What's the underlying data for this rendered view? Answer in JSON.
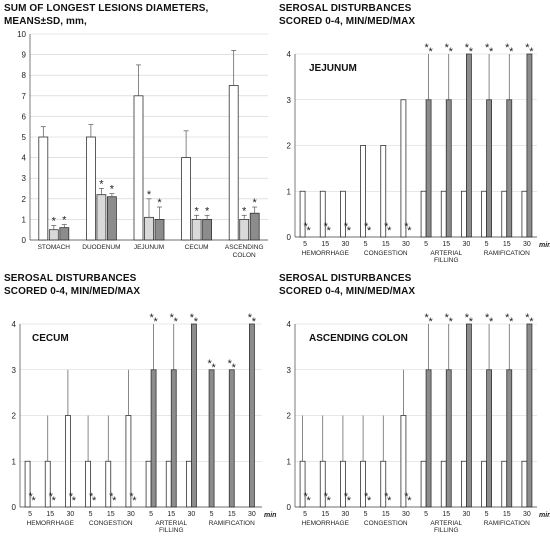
{
  "chart_data": [
    {
      "type": "bar",
      "title_lines": [
        "SUM OF LONGEST LESIONS DIAMETERS,",
        "MEANS±SD, mm,"
      ],
      "inner_title": "",
      "ylim": [
        0,
        10
      ],
      "yticks": [
        "0",
        "1",
        "2",
        "3",
        "4",
        "5",
        "6",
        "7",
        "8",
        "9",
        "10"
      ],
      "grid": true,
      "error_style": "sd",
      "categories": [
        {
          "label_lines": [
            "STOMACH"
          ],
          "bars": [
            {
              "value": 5.0,
              "err": 0.5,
              "star": false,
              "style": "white"
            },
            {
              "value": 0.5,
              "err": 0.2,
              "star": true,
              "style": "light"
            },
            {
              "value": 0.6,
              "err": 0.15,
              "star": true,
              "style": "gray"
            }
          ]
        },
        {
          "label_lines": [
            "DUODENUM"
          ],
          "bars": [
            {
              "value": 5.0,
              "err": 0.6,
              "star": false,
              "style": "white"
            },
            {
              "value": 2.2,
              "err": 0.3,
              "star": true,
              "style": "light"
            },
            {
              "value": 2.1,
              "err": 0.15,
              "star": true,
              "style": "gray"
            }
          ]
        },
        {
          "label_lines": [
            "JEJUNUM"
          ],
          "bars": [
            {
              "value": 7.0,
              "err": 1.5,
              "star": false,
              "style": "white"
            },
            {
              "value": 1.1,
              "err": 0.9,
              "star": true,
              "style": "light"
            },
            {
              "value": 1.0,
              "err": 0.6,
              "star": true,
              "style": "gray"
            }
          ]
        },
        {
          "label_lines": [
            "CECUM"
          ],
          "bars": [
            {
              "value": 4.0,
              "err": 1.3,
              "star": false,
              "style": "white"
            },
            {
              "value": 1.0,
              "err": 0.2,
              "star": true,
              "style": "light"
            },
            {
              "value": 1.0,
              "err": 0.2,
              "star": true,
              "style": "gray"
            }
          ]
        },
        {
          "label_lines": [
            "ASCENDING",
            "COLON"
          ],
          "bars": [
            {
              "value": 7.5,
              "err": 1.7,
              "star": false,
              "style": "white"
            },
            {
              "value": 1.0,
              "err": 0.2,
              "star": true,
              "style": "light"
            },
            {
              "value": 1.3,
              "err": 0.3,
              "star": true,
              "style": "gray"
            }
          ]
        }
      ]
    },
    {
      "type": "bar",
      "title_lines": [
        "SEROSAL DISTURBANCES",
        "SCORED 0-4, MIN/MED/MAX"
      ],
      "inner_title": "JEJUNUM",
      "ylim": [
        0,
        4
      ],
      "yticks": [
        "0",
        "1",
        "2",
        "3",
        "4"
      ],
      "grid": true,
      "error_style": "range",
      "unit_label": "min",
      "time_labels": [
        "5",
        "15",
        "30"
      ],
      "groups": [
        {
          "label_lines": [
            "HEMORRHAGE"
          ],
          "points": [
            {
              "time": "5",
              "bars": [
                {
                  "value": 1,
                  "max": 1,
                  "style": "white"
                },
                {
                  "value": 0,
                  "max": 0,
                  "style": "light",
                  "star": true
                }
              ]
            },
            {
              "time": "15",
              "bars": [
                {
                  "value": 1,
                  "max": 1,
                  "style": "white"
                },
                {
                  "value": 0,
                  "max": 0,
                  "style": "light",
                  "star": true
                }
              ]
            },
            {
              "time": "30",
              "bars": [
                {
                  "value": 1,
                  "max": 1,
                  "style": "white"
                },
                {
                  "value": 0,
                  "max": 0,
                  "style": "light",
                  "star": true
                }
              ]
            }
          ]
        },
        {
          "label_lines": [
            "CONGESTION"
          ],
          "points": [
            {
              "time": "5",
              "bars": [
                {
                  "value": 2,
                  "max": 2,
                  "style": "white"
                },
                {
                  "value": 0,
                  "max": 0,
                  "style": "light",
                  "star": true
                }
              ]
            },
            {
              "time": "15",
              "bars": [
                {
                  "value": 2,
                  "max": 2,
                  "style": "white"
                },
                {
                  "value": 0,
                  "max": 0,
                  "style": "light",
                  "star": true
                }
              ]
            },
            {
              "time": "30",
              "bars": [
                {
                  "value": 3,
                  "max": 3,
                  "style": "white"
                },
                {
                  "value": 0,
                  "max": 0,
                  "style": "light",
                  "star": true
                }
              ]
            }
          ]
        },
        {
          "label_lines": [
            "ARTERIAL",
            "FILLING"
          ],
          "points": [
            {
              "time": "5",
              "bars": [
                {
                  "value": 1,
                  "max": 1,
                  "style": "white"
                },
                {
                  "value": 3,
                  "max": 4,
                  "style": "gray",
                  "star": true
                }
              ]
            },
            {
              "time": "15",
              "bars": [
                {
                  "value": 1,
                  "max": 1,
                  "style": "white"
                },
                {
                  "value": 3,
                  "max": 4,
                  "style": "gray",
                  "star": true
                }
              ]
            },
            {
              "time": "30",
              "bars": [
                {
                  "value": 1,
                  "max": 1,
                  "style": "white"
                },
                {
                  "value": 4,
                  "max": 4,
                  "style": "gray",
                  "star": true
                }
              ]
            }
          ]
        },
        {
          "label_lines": [
            "RAMIFICATION"
          ],
          "points": [
            {
              "time": "5",
              "bars": [
                {
                  "value": 1,
                  "max": 1,
                  "style": "white"
                },
                {
                  "value": 3,
                  "max": 4,
                  "style": "gray",
                  "star": true
                }
              ]
            },
            {
              "time": "15",
              "bars": [
                {
                  "value": 1,
                  "max": 1,
                  "style": "white"
                },
                {
                  "value": 3,
                  "max": 4,
                  "style": "gray",
                  "star": true
                }
              ]
            },
            {
              "time": "30",
              "bars": [
                {
                  "value": 1,
                  "max": 1,
                  "style": "white"
                },
                {
                  "value": 4,
                  "max": 4,
                  "style": "gray",
                  "star": true
                }
              ]
            }
          ]
        }
      ]
    },
    {
      "type": "bar",
      "title_lines": [
        "SEROSAL DISTURBANCES",
        "SCORED 0-4, MIN/MED/MAX"
      ],
      "inner_title": "CECUM",
      "ylim": [
        0,
        4
      ],
      "yticks": [
        "0",
        "1",
        "2",
        "3",
        "4"
      ],
      "grid": true,
      "error_style": "range",
      "unit_label": "min",
      "time_labels": [
        "5",
        "15",
        "30"
      ],
      "groups": [
        {
          "label_lines": [
            "HEMORRHAGE"
          ],
          "points": [
            {
              "time": "5",
              "bars": [
                {
                  "value": 1,
                  "max": 1,
                  "style": "white"
                },
                {
                  "value": 0,
                  "max": 0,
                  "style": "light",
                  "star": true
                }
              ]
            },
            {
              "time": "15",
              "bars": [
                {
                  "value": 1,
                  "max": 2,
                  "style": "white"
                },
                {
                  "value": 0,
                  "max": 0,
                  "style": "light",
                  "star": true
                }
              ]
            },
            {
              "time": "30",
              "bars": [
                {
                  "value": 2,
                  "max": 3,
                  "style": "white"
                },
                {
                  "value": 0,
                  "max": 0,
                  "style": "light",
                  "star": true
                }
              ]
            }
          ]
        },
        {
          "label_lines": [
            "CONGESTION"
          ],
          "points": [
            {
              "time": "5",
              "bars": [
                {
                  "value": 1,
                  "max": 2,
                  "style": "white"
                },
                {
                  "value": 0,
                  "max": 0,
                  "style": "light",
                  "star": true
                }
              ]
            },
            {
              "time": "15",
              "bars": [
                {
                  "value": 1,
                  "max": 2,
                  "style": "white"
                },
                {
                  "value": 0,
                  "max": 0,
                  "style": "light",
                  "star": true
                }
              ]
            },
            {
              "time": "30",
              "bars": [
                {
                  "value": 2,
                  "max": 3,
                  "style": "white"
                },
                {
                  "value": 0,
                  "max": 0,
                  "style": "light",
                  "star": true
                }
              ]
            }
          ]
        },
        {
          "label_lines": [
            "ARTERIAL",
            "FILLING"
          ],
          "points": [
            {
              "time": "5",
              "bars": [
                {
                  "value": 1,
                  "max": 1,
                  "style": "white"
                },
                {
                  "value": 3,
                  "max": 4,
                  "style": "gray",
                  "star": true
                }
              ]
            },
            {
              "time": "15",
              "bars": [
                {
                  "value": 1,
                  "max": 1,
                  "style": "white"
                },
                {
                  "value": 3,
                  "max": 4,
                  "style": "gray",
                  "star": true
                }
              ]
            },
            {
              "time": "30",
              "bars": [
                {
                  "value": 1,
                  "max": 1,
                  "style": "white"
                },
                {
                  "value": 4,
                  "max": 4,
                  "style": "gray",
                  "star": true
                }
              ]
            }
          ]
        },
        {
          "label_lines": [
            "RAMIFICATION"
          ],
          "points": [
            {
              "time": "5",
              "bars": [
                {
                  "value": 3,
                  "max": 3,
                  "style": "gray",
                  "star": true
                }
              ]
            },
            {
              "time": "15",
              "bars": [
                {
                  "value": 3,
                  "max": 3,
                  "style": "gray",
                  "star": true
                }
              ]
            },
            {
              "time": "30",
              "bars": [
                {
                  "value": 4,
                  "max": 4,
                  "style": "gray",
                  "star": true
                }
              ]
            }
          ]
        }
      ]
    },
    {
      "type": "bar",
      "title_lines": [
        "SEROSAL DISTURBANCES",
        "SCORED 0-4, MIN/MED/MAX"
      ],
      "inner_title": "ASCENDING COLON",
      "ylim": [
        0,
        4
      ],
      "yticks": [
        "0",
        "1",
        "2",
        "3",
        "4"
      ],
      "grid": true,
      "error_style": "range",
      "unit_label": "min",
      "time_labels": [
        "5",
        "15",
        "30"
      ],
      "groups": [
        {
          "label_lines": [
            "HEMORRHAGE"
          ],
          "points": [
            {
              "time": "5",
              "bars": [
                {
                  "value": 1,
                  "max": 2,
                  "style": "white"
                },
                {
                  "value": 0,
                  "max": 0,
                  "style": "light",
                  "star": true
                }
              ]
            },
            {
              "time": "15",
              "bars": [
                {
                  "value": 1,
                  "max": 2,
                  "style": "white"
                },
                {
                  "value": 0,
                  "max": 0,
                  "style": "light",
                  "star": true
                }
              ]
            },
            {
              "time": "30",
              "bars": [
                {
                  "value": 1,
                  "max": 2,
                  "style": "white"
                },
                {
                  "value": 0,
                  "max": 0,
                  "style": "light",
                  "star": true
                }
              ]
            }
          ]
        },
        {
          "label_lines": [
            "CONGESTION"
          ],
          "points": [
            {
              "time": "5",
              "bars": [
                {
                  "value": 1,
                  "max": 2,
                  "style": "white"
                },
                {
                  "value": 0,
                  "max": 0,
                  "style": "light",
                  "star": true
                }
              ]
            },
            {
              "time": "15",
              "bars": [
                {
                  "value": 1,
                  "max": 2,
                  "style": "white"
                },
                {
                  "value": 0,
                  "max": 0,
                  "style": "light",
                  "star": true
                }
              ]
            },
            {
              "time": "30",
              "bars": [
                {
                  "value": 2,
                  "max": 3,
                  "style": "white"
                },
                {
                  "value": 0,
                  "max": 0,
                  "style": "light",
                  "star": true
                }
              ]
            }
          ]
        },
        {
          "label_lines": [
            "ARTERIAL",
            "FILLING"
          ],
          "points": [
            {
              "time": "5",
              "bars": [
                {
                  "value": 1,
                  "max": 1,
                  "style": "white"
                },
                {
                  "value": 3,
                  "max": 4,
                  "style": "gray",
                  "star": true
                }
              ]
            },
            {
              "time": "15",
              "bars": [
                {
                  "value": 1,
                  "max": 1,
                  "style": "white"
                },
                {
                  "value": 3,
                  "max": 4,
                  "style": "gray",
                  "star": true
                }
              ]
            },
            {
              "time": "30",
              "bars": [
                {
                  "value": 1,
                  "max": 1,
                  "style": "white"
                },
                {
                  "value": 4,
                  "max": 4,
                  "style": "gray",
                  "star": true
                }
              ]
            }
          ]
        },
        {
          "label_lines": [
            "RAMIFICATION"
          ],
          "points": [
            {
              "time": "5",
              "bars": [
                {
                  "value": 1,
                  "max": 1,
                  "style": "white"
                },
                {
                  "value": 3,
                  "max": 4,
                  "style": "gray",
                  "star": true
                }
              ]
            },
            {
              "time": "15",
              "bars": [
                {
                  "value": 1,
                  "max": 1,
                  "style": "white"
                },
                {
                  "value": 3,
                  "max": 4,
                  "style": "gray",
                  "star": true
                }
              ]
            },
            {
              "time": "30",
              "bars": [
                {
                  "value": 1,
                  "max": 1,
                  "style": "white"
                },
                {
                  "value": 4,
                  "max": 4,
                  "style": "gray",
                  "star": true
                }
              ]
            }
          ]
        }
      ]
    }
  ],
  "colors": {
    "white": "#ffffff",
    "light": "#d9d9d9",
    "gray": "#8c8c8c",
    "axis": "#444444",
    "grid": "#d0d0d0"
  }
}
